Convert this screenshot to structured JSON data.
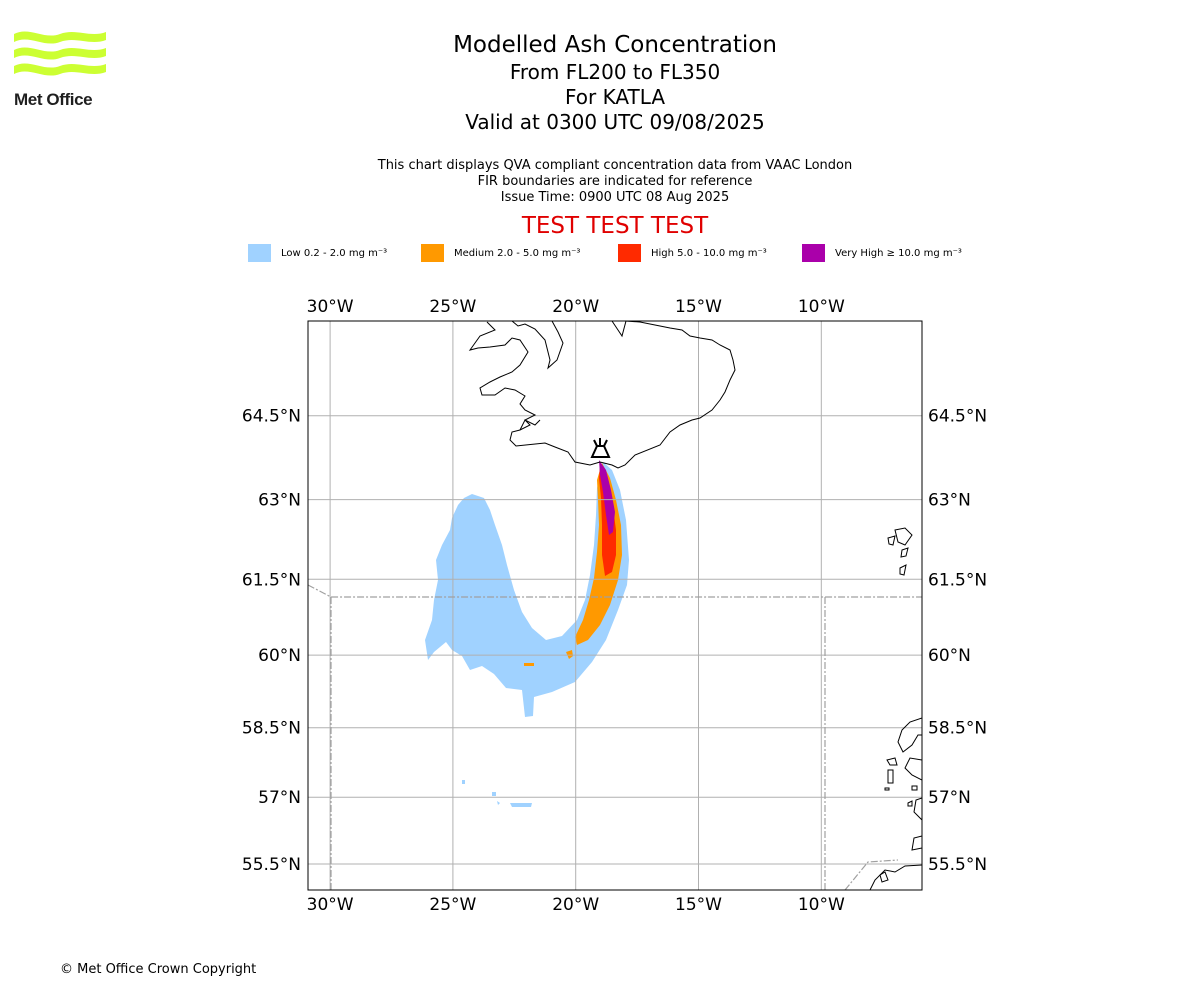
{
  "logo": {
    "text": "Met Office",
    "icon": "met-office-wave-logo",
    "color": "#ccff33"
  },
  "title": {
    "line1": "Modelled Ash Concentration",
    "line2": "From FL200 to FL350",
    "line3": "For KATLA",
    "line4": "Valid at 0300 UTC 09/08/2025"
  },
  "description": {
    "line1": "This chart displays QVA compliant concentration data from VAAC London",
    "line2": "FIR boundaries are indicated for reference",
    "line3": "Issue Time: 0900 UTC 08 Aug 2025"
  },
  "test_banner": "TEST TEST TEST",
  "legend": [
    {
      "label": "Low 0.2 - 2.0 mg m⁻³",
      "color": "#a0d2ff"
    },
    {
      "label": "Medium 2.0 - 5.0 mg m⁻³",
      "color": "#ff9900"
    },
    {
      "label": "High 5.0 - 10.0 mg m⁻³",
      "color": "#ff2a00"
    },
    {
      "label": "Very High  ≥  10.0 mg m⁻³",
      "color": "#aa00aa"
    }
  ],
  "map": {
    "lon_range": [
      -30.9,
      -5.9
    ],
    "lat_range": [
      54.9,
      66.1
    ],
    "lon_ticks": [
      {
        "value": -30,
        "label": "30°W"
      },
      {
        "value": -25,
        "label": "25°W"
      },
      {
        "value": -20,
        "label": "20°W"
      },
      {
        "value": -15,
        "label": "15°W"
      },
      {
        "value": -10,
        "label": "10°W"
      }
    ],
    "lat_ticks": [
      {
        "value": 64.5,
        "label": "64.5°N"
      },
      {
        "value": 63,
        "label": "63°N"
      },
      {
        "value": 61.5,
        "label": "61.5°N"
      },
      {
        "value": 60,
        "label": "60°N"
      },
      {
        "value": 58.5,
        "label": "58.5°N"
      },
      {
        "value": 57,
        "label": "57°N"
      },
      {
        "value": 55.5,
        "label": "55.5°N"
      }
    ],
    "volcano": {
      "name": "KATLA",
      "lon": -19.05,
      "lat": 63.63,
      "icon": "volcano-icon"
    },
    "grid": true
  },
  "copyright": "© Met Office Crown Copyright"
}
